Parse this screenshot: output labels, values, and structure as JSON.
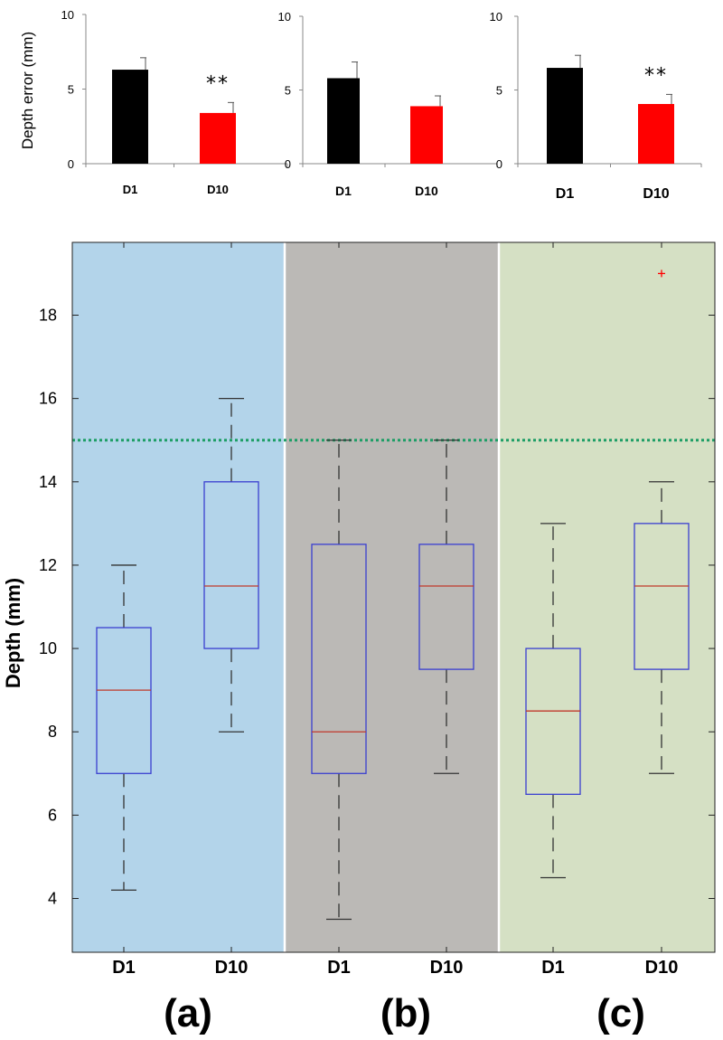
{
  "chart_data": [
    {
      "type": "bar",
      "panel": "(a)",
      "ylabel": "Depth error (mm)",
      "categories": [
        "D1",
        "D10"
      ],
      "values": [
        6.3,
        3.4
      ],
      "errors": [
        0.8,
        0.7
      ],
      "colors": [
        "#000000",
        "#ff0000"
      ],
      "annotation": "**",
      "annotation_category": "D10",
      "ylim": [
        0,
        10
      ],
      "yticks": [
        "0",
        "5",
        "10"
      ]
    },
    {
      "type": "bar",
      "panel": "(b)",
      "ylabel": "",
      "categories": [
        "D1",
        "D10"
      ],
      "values": [
        5.8,
        3.9
      ],
      "errors": [
        1.1,
        0.7
      ],
      "colors": [
        "#000000",
        "#ff0000"
      ],
      "annotation": "",
      "annotation_category": "",
      "ylim": [
        0,
        10
      ],
      "yticks": [
        "0",
        "5",
        "10"
      ]
    },
    {
      "type": "bar",
      "panel": "(c)",
      "ylabel": "",
      "categories": [
        "D1",
        "D10"
      ],
      "values": [
        6.5,
        4.05
      ],
      "errors": [
        0.85,
        0.65
      ],
      "colors": [
        "#000000",
        "#ff0000"
      ],
      "annotation": "**",
      "annotation_category": "D10",
      "ylim": [
        0,
        10
      ],
      "yticks": [
        "0",
        "5",
        "10"
      ]
    },
    {
      "type": "box",
      "ylabel": "Depth (mm)",
      "ylim": [
        2.8,
        19.8
      ],
      "yticks": [
        "4",
        "6",
        "8",
        "10",
        "12",
        "14",
        "16",
        "18"
      ],
      "threshold": 15,
      "threshold_color": "#1e9e66",
      "box_color": "#3a3fd0",
      "median_color": "#c0392b",
      "whisker_color": "#333333",
      "outlier_color": "#ff0000",
      "panel_labels": [
        "(a)",
        "(b)",
        "(c)"
      ],
      "panel_colors": [
        "#b3d4ea",
        "#bbb9b6",
        "#d5e0c4"
      ],
      "categories": [
        "D1",
        "D10",
        "D1",
        "D10",
        "D1",
        "D10"
      ],
      "boxes": [
        {
          "panel": "(a)",
          "group": "D1",
          "min": 4.2,
          "q1": 7.0,
          "median": 9.0,
          "q3": 10.5,
          "max": 12.0,
          "outliers": []
        },
        {
          "panel": "(a)",
          "group": "D10",
          "min": 8.0,
          "q1": 10.0,
          "median": 11.5,
          "q3": 14.0,
          "max": 16.0,
          "outliers": []
        },
        {
          "panel": "(b)",
          "group": "D1",
          "min": 3.5,
          "q1": 7.0,
          "median": 8.0,
          "q3": 12.5,
          "max": 15.0,
          "outliers": []
        },
        {
          "panel": "(b)",
          "group": "D10",
          "min": 7.0,
          "q1": 9.5,
          "median": 11.5,
          "q3": 12.5,
          "max": 15.0,
          "outliers": []
        },
        {
          "panel": "(c)",
          "group": "D1",
          "min": 4.5,
          "q1": 6.5,
          "median": 8.5,
          "q3": 10.0,
          "max": 13.0,
          "outliers": []
        },
        {
          "panel": "(c)",
          "group": "D10",
          "min": 7.0,
          "q1": 9.5,
          "median": 11.5,
          "q3": 13.0,
          "max": 14.0,
          "outliers": [
            19.0
          ]
        }
      ]
    }
  ]
}
